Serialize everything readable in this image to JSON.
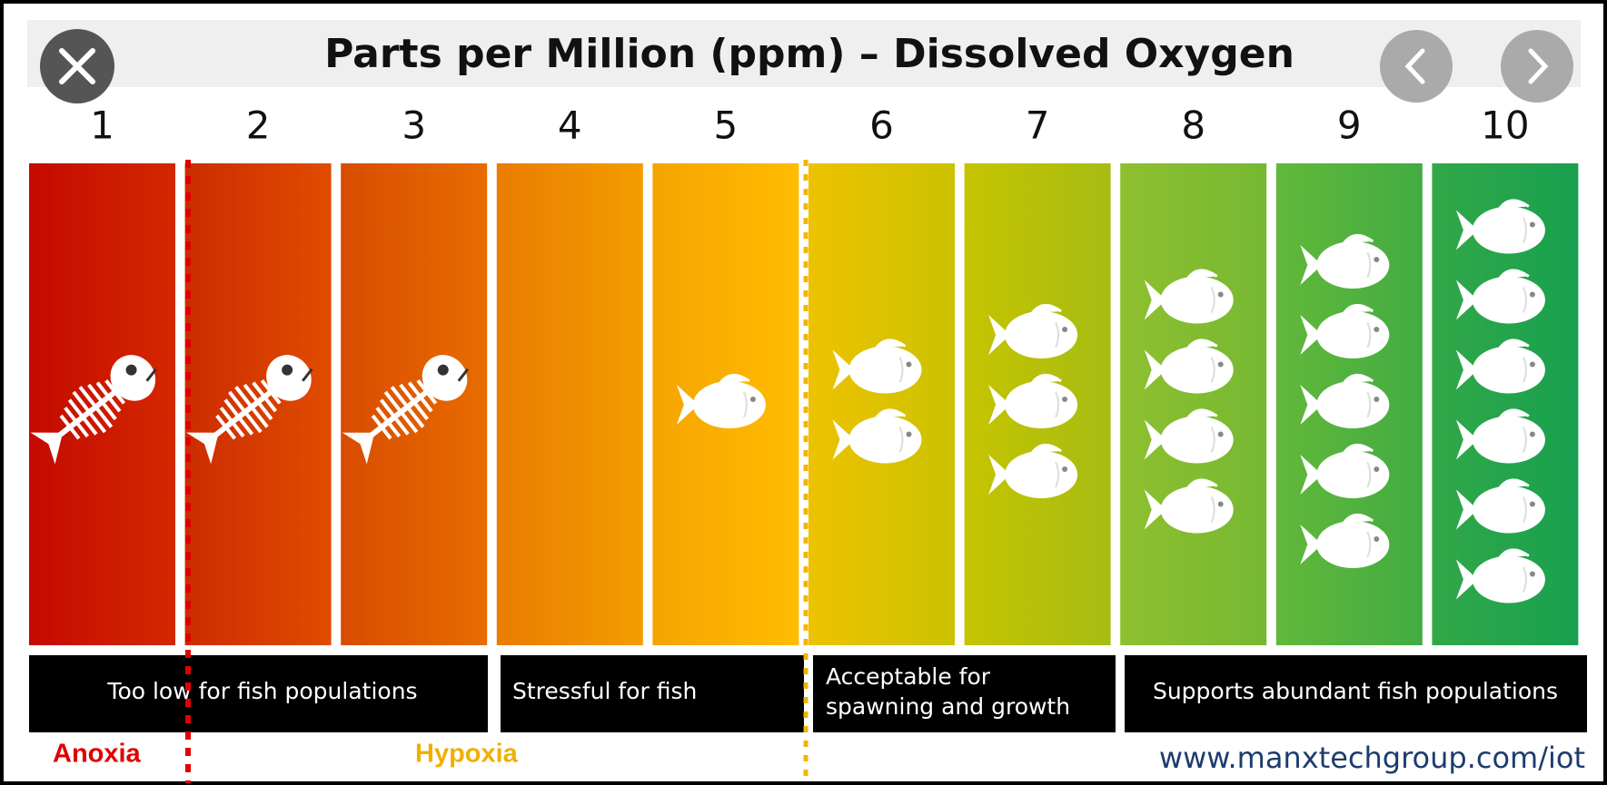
{
  "header": {
    "title": "Parts per Million (ppm) – Dissolved Oxygen"
  },
  "scale": [
    {
      "label": "1",
      "fish": 1,
      "alive": false,
      "colors": [
        "#c40a00",
        "#d42800"
      ]
    },
    {
      "label": "2",
      "fish": 1,
      "alive": false,
      "colors": [
        "#cc2c00",
        "#e04c00"
      ]
    },
    {
      "label": "3",
      "fish": 1,
      "alive": false,
      "colors": [
        "#d84c00",
        "#e86c00"
      ]
    },
    {
      "label": "4",
      "fish": 0,
      "alive": true,
      "colors": [
        "#ea7c00",
        "#f39c00"
      ]
    },
    {
      "label": "5",
      "fish": 1,
      "alive": true,
      "colors": [
        "#f5a400",
        "#ffbc00"
      ]
    },
    {
      "label": "6",
      "fish": 2,
      "alive": true,
      "colors": [
        "#eec200",
        "#cbc200"
      ]
    },
    {
      "label": "7",
      "fish": 3,
      "alive": true,
      "colors": [
        "#c6c400",
        "#a6bc12"
      ]
    },
    {
      "label": "8",
      "fish": 4,
      "alive": true,
      "colors": [
        "#8ec030",
        "#76b832"
      ]
    },
    {
      "label": "9",
      "fish": 5,
      "alive": true,
      "colors": [
        "#62b83a",
        "#42ac42"
      ]
    },
    {
      "label": "10",
      "fish": 6,
      "alive": true,
      "colors": [
        "#32a848",
        "#18a050"
      ]
    }
  ],
  "labels": [
    [
      "Too low for fish populations"
    ],
    [
      "Stressful for fish"
    ],
    [
      "Acceptable for",
      "spawning and growth"
    ],
    [
      "Supports abundant fish populations"
    ]
  ],
  "zones": {
    "anoxia": "Anoxia",
    "hypoxia": "Hypoxia"
  },
  "footer": {
    "url": "www.manxtechgroup.com/iot"
  }
}
